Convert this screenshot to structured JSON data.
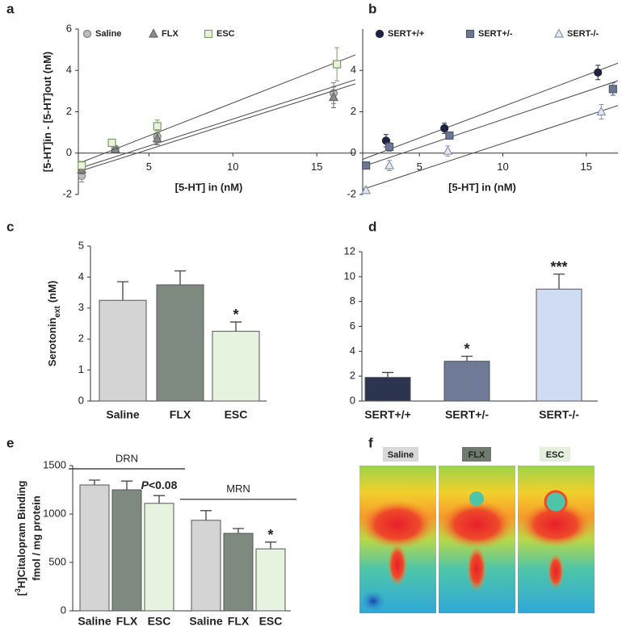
{
  "chart_data": [
    {
      "type": "scatter",
      "label": "a",
      "y_label": {
        "text": "[5-HT]in - [5-HT]out (nM)"
      },
      "x_label": "[5-HT] in (nM)",
      "xlim": [
        0.8,
        17.3
      ],
      "ylim": [
        -2,
        6
      ],
      "xticks": [
        5,
        10,
        15
      ],
      "yticks": [
        -2,
        0,
        2,
        4,
        6
      ],
      "series": [
        {
          "name": "Saline",
          "marker": "circle",
          "color": "#bdbdbd",
          "edge": "#7f7f7f",
          "x": [
            1,
            3,
            5.5,
            16
          ],
          "values": [
            -1.1,
            0.2,
            0.8,
            2.9
          ],
          "errors": [
            0.3,
            0.15,
            0.3,
            0.5
          ],
          "fit_x": [
            0.8,
            17.3
          ],
          "fit_y": [
            -0.75,
            3.55
          ]
        },
        {
          "name": "FLX",
          "marker": "triangle",
          "color": "#8c8c8c",
          "edge": "#666666",
          "x": [
            1,
            3,
            5.5,
            16
          ],
          "values": [
            -0.8,
            0.2,
            0.7,
            2.7
          ],
          "errors": [
            0.2,
            0.15,
            0.3,
            0.5
          ],
          "fit_x": [
            0.8,
            17.3
          ],
          "fit_y": [
            -0.9,
            3.35
          ]
        },
        {
          "name": "ESC",
          "marker": "square",
          "color": "#e8f3df",
          "edge": "#7d9a66",
          "x": [
            1,
            2.8,
            5.5,
            16.2
          ],
          "values": [
            -0.6,
            0.5,
            1.3,
            4.3
          ],
          "errors": [
            0.2,
            0.15,
            0.3,
            0.8
          ],
          "fit_x": [
            0.8,
            17.3
          ],
          "fit_y": [
            -0.5,
            4.75
          ]
        }
      ]
    },
    {
      "type": "scatter",
      "label": "b",
      "x_label": "[5-HT] in (nM)",
      "xlim": [
        1.6,
        16.9
      ],
      "ylim": [
        -2,
        6
      ],
      "xticks": [
        5,
        10,
        15
      ],
      "yticks": [
        -2,
        0,
        2,
        4
      ],
      "series": [
        {
          "name": "SERT+/+",
          "marker": "circle",
          "color": "#1e2440",
          "edge": "#1e2440",
          "x": [
            3,
            6.5,
            15.7
          ],
          "values": [
            0.6,
            1.2,
            3.9
          ],
          "errors": [
            0.3,
            0.25,
            0.35
          ],
          "fit_x": [
            1.6,
            16.9
          ],
          "fit_y": [
            -0.3,
            4.35
          ]
        },
        {
          "name": "SERT+/-",
          "marker": "square",
          "color": "#6c7893",
          "edge": "#4d566c",
          "x": [
            1.8,
            3.2,
            6.8,
            16.6
          ],
          "values": [
            -0.6,
            0.3,
            0.85,
            3.1
          ],
          "errors": [
            0.15,
            0.2,
            0.15,
            0.3
          ],
          "fit_x": [
            1.6,
            16.9
          ],
          "fit_y": [
            -0.65,
            3.5
          ]
        },
        {
          "name": "SERT-/-",
          "marker": "triangle",
          "color": "#e2e9f5",
          "edge": "#8a96aa",
          "x": [
            1.8,
            3.2,
            6.7,
            15.9
          ],
          "values": [
            -1.8,
            -0.6,
            0.1,
            2.0
          ],
          "errors": [
            0.15,
            0.25,
            0.25,
            0.35
          ],
          "fit_x": [
            1.6,
            16.9
          ],
          "fit_y": [
            -1.75,
            2.3
          ]
        }
      ]
    },
    {
      "type": "bar",
      "label": "c",
      "y_label": {
        "text": "Serotonin",
        "sub": "ext",
        "rest": "(nM)"
      },
      "categories": [
        "Saline",
        "FLX",
        "ESC"
      ],
      "values": [
        3.25,
        3.75,
        2.25
      ],
      "errors": [
        0.6,
        0.45,
        0.3
      ],
      "colors": [
        "#d4d4d4",
        "#7e8a80",
        "#e6f3de"
      ],
      "ylim": [
        0,
        5
      ],
      "yticks": [
        0,
        1,
        2,
        3,
        4,
        5
      ],
      "annotations": [
        {
          "index": 2,
          "text": "*"
        }
      ]
    },
    {
      "type": "bar",
      "label": "d",
      "categories": [
        "SERT+/+",
        "SERT+/-",
        "SERT-/-"
      ],
      "values": [
        1.9,
        3.2,
        9.0
      ],
      "errors": [
        0.4,
        0.4,
        1.2
      ],
      "colors": [
        "#2c3450",
        "#6f7a96",
        "#cfdcf3"
      ],
      "ylim": [
        0,
        12
      ],
      "yticks": [
        0,
        2,
        4,
        6,
        8,
        10,
        12
      ],
      "annotations": [
        {
          "index": 1,
          "text": "*"
        },
        {
          "index": 2,
          "text": "***"
        }
      ]
    },
    {
      "type": "bar",
      "label": "e",
      "y_label": {
        "pre": "[",
        "sup": "3",
        "text": "H]Citalopram Binding"
      },
      "y_label_2": "fmol / mg protein",
      "categories": [
        "Saline",
        "FLX",
        "ESC",
        "Saline",
        "FLX",
        "ESC"
      ],
      "values": [
        1300,
        1250,
        1110,
        935,
        800,
        640
      ],
      "errors": [
        50,
        90,
        80,
        100,
        50,
        70
      ],
      "colors": [
        "#d4d4d4",
        "#7e8a80",
        "#e6f3de",
        "#d4d4d4",
        "#7e8a80",
        "#e6f3de"
      ],
      "ylim": [
        0,
        1500
      ],
      "yticks": [
        0,
        500,
        1000,
        1500
      ],
      "groups": [
        {
          "label": "DRN",
          "start": 0,
          "end": 2
        },
        {
          "label": "MRN",
          "start": 3,
          "end": 5
        }
      ],
      "annotations": [
        {
          "index": 2,
          "italic": "P",
          "text": "<0.08"
        },
        {
          "index": 5,
          "text": "*"
        }
      ]
    }
  ],
  "image_panel": {
    "label": "f",
    "captions": [
      "Saline",
      "FLX",
      "ESC"
    ]
  }
}
